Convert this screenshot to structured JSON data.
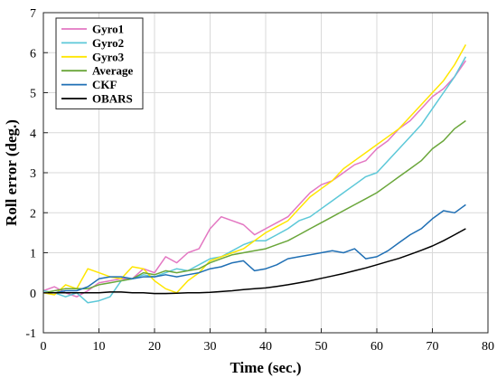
{
  "chart_data": {
    "type": "line",
    "title": "",
    "xlabel": "Time (sec.)",
    "ylabel": "Roll error (deg.)",
    "xlim": [
      0,
      80
    ],
    "ylim": [
      -1,
      7
    ],
    "xticks": [
      0,
      10,
      20,
      30,
      40,
      50,
      60,
      70,
      80
    ],
    "yticks": [
      -1,
      0,
      1,
      2,
      3,
      4,
      5,
      6,
      7
    ],
    "grid": true,
    "legend_position": "top-left",
    "series": [
      {
        "name": "Gyro1",
        "color": "#e377c2",
        "x": [
          0,
          2,
          4,
          6,
          8,
          10,
          12,
          14,
          16,
          18,
          20,
          22,
          24,
          26,
          28,
          30,
          32,
          34,
          36,
          38,
          40,
          42,
          44,
          46,
          48,
          50,
          52,
          54,
          56,
          58,
          60,
          62,
          64,
          66,
          68,
          70,
          72,
          74,
          76
        ],
        "y": [
          0.05,
          0.15,
          0.0,
          -0.1,
          0.05,
          0.25,
          0.3,
          0.35,
          0.35,
          0.6,
          0.5,
          0.9,
          0.75,
          1.0,
          1.1,
          1.6,
          1.9,
          1.8,
          1.7,
          1.45,
          1.6,
          1.75,
          1.9,
          2.2,
          2.5,
          2.7,
          2.8,
          3.0,
          3.2,
          3.3,
          3.6,
          3.8,
          4.1,
          4.3,
          4.6,
          4.9,
          5.1,
          5.4,
          5.8
        ]
      },
      {
        "name": "Gyro2",
        "color": "#5cc8d8",
        "x": [
          0,
          2,
          4,
          6,
          8,
          10,
          12,
          14,
          16,
          18,
          20,
          22,
          24,
          26,
          28,
          30,
          32,
          34,
          36,
          38,
          40,
          42,
          44,
          46,
          48,
          50,
          52,
          54,
          56,
          58,
          60,
          62,
          64,
          66,
          68,
          70,
          72,
          74,
          76
        ],
        "y": [
          0.05,
          0.0,
          -0.1,
          0.0,
          -0.25,
          -0.2,
          -0.1,
          0.3,
          0.35,
          0.45,
          0.4,
          0.5,
          0.6,
          0.55,
          0.7,
          0.85,
          0.9,
          1.05,
          1.2,
          1.3,
          1.3,
          1.45,
          1.6,
          1.8,
          1.9,
          2.1,
          2.3,
          2.5,
          2.7,
          2.9,
          3.0,
          3.3,
          3.6,
          3.9,
          4.2,
          4.6,
          5.0,
          5.4,
          5.9
        ]
      },
      {
        "name": "Gyro3",
        "color": "#ffe600",
        "x": [
          0,
          2,
          4,
          6,
          8,
          10,
          12,
          14,
          16,
          18,
          20,
          22,
          24,
          26,
          28,
          30,
          32,
          34,
          36,
          38,
          40,
          42,
          44,
          46,
          48,
          50,
          52,
          54,
          56,
          58,
          60,
          62,
          64,
          66,
          68,
          70,
          72,
          74,
          76
        ],
        "y": [
          0.0,
          -0.05,
          0.2,
          0.1,
          0.6,
          0.5,
          0.4,
          0.35,
          0.65,
          0.6,
          0.3,
          0.1,
          0.0,
          0.3,
          0.5,
          0.8,
          0.9,
          1.0,
          1.1,
          1.3,
          1.5,
          1.65,
          1.8,
          2.1,
          2.4,
          2.6,
          2.8,
          3.1,
          3.3,
          3.5,
          3.7,
          3.9,
          4.1,
          4.4,
          4.7,
          5.0,
          5.3,
          5.7,
          6.2
        ]
      },
      {
        "name": "Average",
        "color": "#6aa63a",
        "x": [
          0,
          2,
          4,
          6,
          8,
          10,
          12,
          14,
          16,
          18,
          20,
          22,
          24,
          26,
          28,
          30,
          32,
          34,
          36,
          38,
          40,
          42,
          44,
          46,
          48,
          50,
          52,
          54,
          56,
          58,
          60,
          62,
          64,
          66,
          68,
          70,
          72,
          74,
          76
        ],
        "y": [
          0.0,
          0.05,
          0.1,
          0.1,
          0.1,
          0.2,
          0.25,
          0.3,
          0.35,
          0.5,
          0.45,
          0.55,
          0.5,
          0.55,
          0.6,
          0.75,
          0.85,
          0.95,
          1.0,
          1.05,
          1.1,
          1.2,
          1.3,
          1.45,
          1.6,
          1.75,
          1.9,
          2.05,
          2.2,
          2.35,
          2.5,
          2.7,
          2.9,
          3.1,
          3.3,
          3.6,
          3.8,
          4.1,
          4.3
        ]
      },
      {
        "name": "CKF",
        "color": "#1f6fb4",
        "x": [
          0,
          2,
          4,
          6,
          8,
          10,
          12,
          14,
          16,
          18,
          20,
          22,
          24,
          26,
          28,
          30,
          32,
          34,
          36,
          38,
          40,
          42,
          44,
          46,
          48,
          50,
          52,
          54,
          56,
          58,
          60,
          62,
          64,
          66,
          68,
          70,
          72,
          74,
          76
        ],
        "y": [
          0.0,
          0.0,
          0.05,
          0.05,
          0.15,
          0.35,
          0.4,
          0.4,
          0.35,
          0.4,
          0.4,
          0.45,
          0.4,
          0.45,
          0.5,
          0.6,
          0.65,
          0.75,
          0.8,
          0.55,
          0.6,
          0.7,
          0.85,
          0.9,
          0.95,
          1.0,
          1.05,
          1.0,
          1.1,
          0.85,
          0.9,
          1.05,
          1.25,
          1.45,
          1.6,
          1.85,
          2.05,
          2.0,
          2.2
        ]
      },
      {
        "name": "OBARS",
        "color": "#000000",
        "x": [
          0,
          2,
          4,
          6,
          8,
          10,
          12,
          14,
          16,
          18,
          20,
          22,
          24,
          26,
          28,
          30,
          32,
          34,
          36,
          38,
          40,
          42,
          44,
          46,
          48,
          50,
          52,
          54,
          56,
          58,
          60,
          62,
          64,
          66,
          68,
          70,
          72,
          74,
          76
        ],
        "y": [
          0.0,
          0.0,
          0.0,
          0.0,
          0.0,
          0.0,
          0.02,
          0.02,
          0.0,
          0.0,
          -0.02,
          -0.02,
          -0.01,
          0.0,
          0.0,
          0.01,
          0.03,
          0.05,
          0.08,
          0.1,
          0.12,
          0.16,
          0.2,
          0.25,
          0.3,
          0.36,
          0.42,
          0.48,
          0.55,
          0.62,
          0.7,
          0.78,
          0.86,
          0.96,
          1.06,
          1.17,
          1.3,
          1.45,
          1.6
        ]
      }
    ]
  }
}
